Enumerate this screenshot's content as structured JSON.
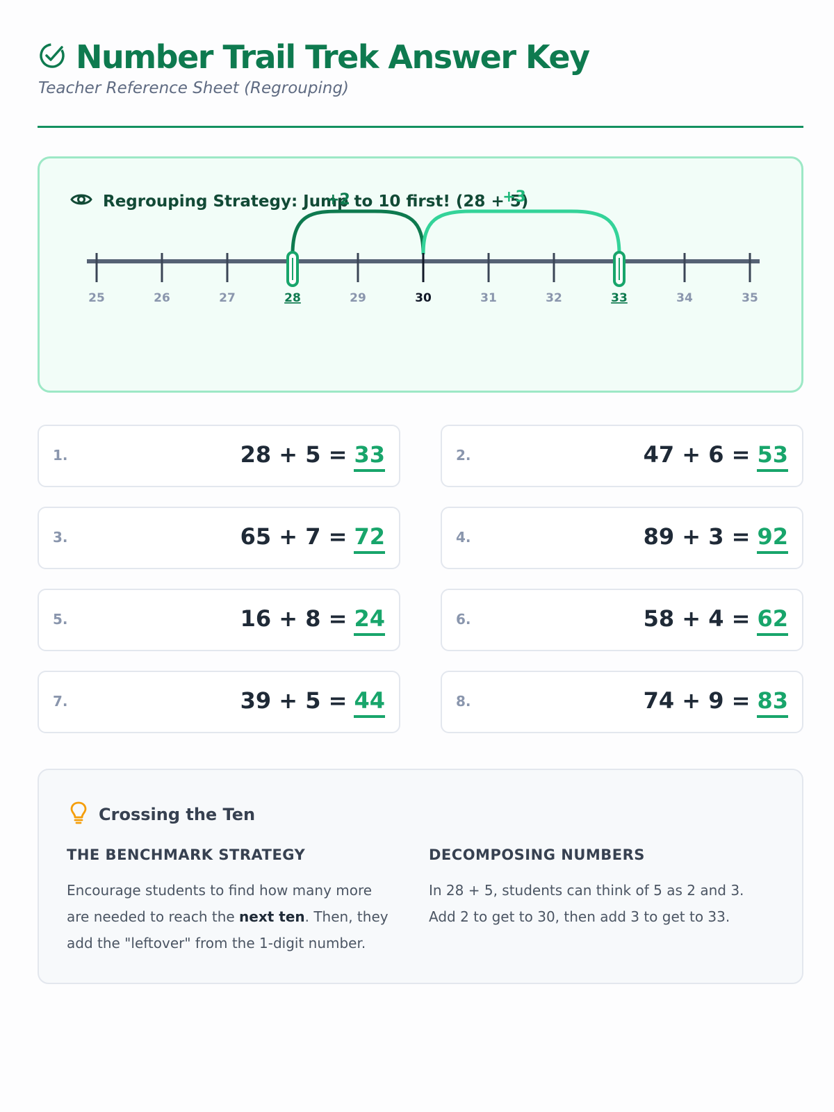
{
  "header": {
    "title": "Number Trail Trek Answer Key",
    "subtitle": "Teacher Reference Sheet (Regrouping)"
  },
  "strategy": {
    "heading": "Regrouping Strategy: Jump to 10 first! (28 + 5)",
    "ticks": [
      "25",
      "26",
      "27",
      "28",
      "29",
      "30",
      "31",
      "32",
      "33",
      "34",
      "35"
    ],
    "start": "28",
    "benchmark": "30",
    "end": "33",
    "jump1_label": "+2",
    "jump2_label": "+3"
  },
  "problems": [
    {
      "num": "1.",
      "expr": "28 + 5 =",
      "answer": "33"
    },
    {
      "num": "2.",
      "expr": "47 + 6 =",
      "answer": "53"
    },
    {
      "num": "3.",
      "expr": "65 + 7 =",
      "answer": "72"
    },
    {
      "num": "4.",
      "expr": "89 + 3 =",
      "answer": "92"
    },
    {
      "num": "5.",
      "expr": "16 + 8 =",
      "answer": "24"
    },
    {
      "num": "6.",
      "expr": "58 + 4 =",
      "answer": "62"
    },
    {
      "num": "7.",
      "expr": "39 + 5 =",
      "answer": "44"
    },
    {
      "num": "8.",
      "expr": "74 + 9 =",
      "answer": "83"
    }
  ],
  "tips": {
    "heading": "Crossing the Ten",
    "left_title": "THE BENCHMARK STRATEGY",
    "left_text_1": "Encourage students to find how many more are needed to reach the ",
    "left_bold": "next ten",
    "left_text_2": ". Then, they add the \"leftover\" from the 1-digit number.",
    "right_title": "DECOMPOSING NUMBERS",
    "right_text": "In 28 + 5, students can think of 5 as 2 and 3. Add 2 to get to 30, then add 3 to get to 33."
  },
  "colors": {
    "brand": "#0e7a4f",
    "answer": "#18a56b",
    "jump2": "#34d399",
    "tip_icon": "#f59e0b"
  }
}
